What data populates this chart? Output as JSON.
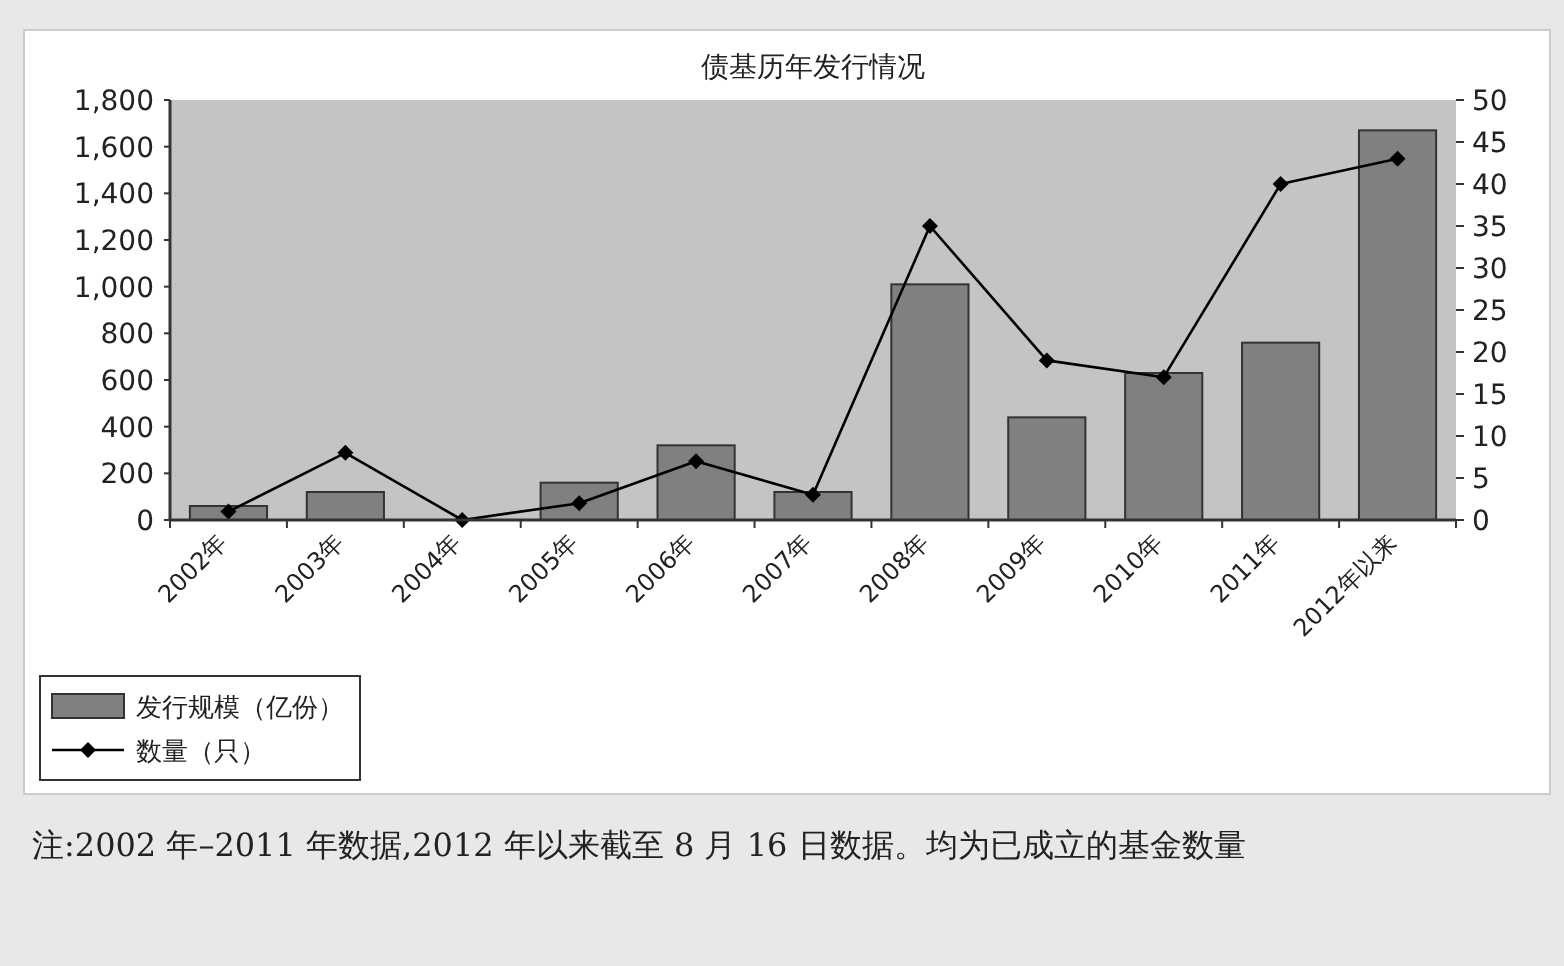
{
  "chart_data": {
    "type": "bar",
    "title": "债基历年发行情况",
    "categories": [
      "2002年",
      "2003年",
      "2004年",
      "2005年",
      "2006年",
      "2007年",
      "2008年",
      "2009年",
      "2010年",
      "2011年",
      "2012年以来"
    ],
    "series": [
      {
        "name": "发行规模（亿份）",
        "color": "#808080",
        "values": [
          60,
          120,
          0,
          160,
          320,
          120,
          1010,
          440,
          630,
          760,
          1670
        ]
      },
      {
        "name": "数量（只）",
        "type": "line",
        "axis": "y2",
        "color": "#000000",
        "marker": "diamond",
        "values": [
          1,
          8,
          0,
          2,
          7,
          3,
          35,
          19,
          17,
          40,
          43
        ]
      }
    ],
    "ylim": [
      0,
      1800
    ],
    "yticks": [
      0,
      200,
      400,
      600,
      800,
      {
        "value": 1000,
        "label": "1,000"
      },
      {
        "value": 1200,
        "label": "1,200"
      },
      {
        "value": 1400,
        "label": "1,400"
      },
      {
        "value": 1600,
        "label": "1,600"
      },
      {
        "value": 1800,
        "label": "1,800"
      }
    ],
    "y2lim": [
      0,
      50
    ],
    "y2ticks": [
      0,
      5,
      10,
      15,
      20,
      25,
      30,
      35,
      40,
      45,
      50
    ],
    "legend": "bottom left",
    "annotations": [
      "注:2002 年–2011 年数据,2012 年以来截至 8 月 16 日数据。均为已成立的基金数量"
    ]
  }
}
